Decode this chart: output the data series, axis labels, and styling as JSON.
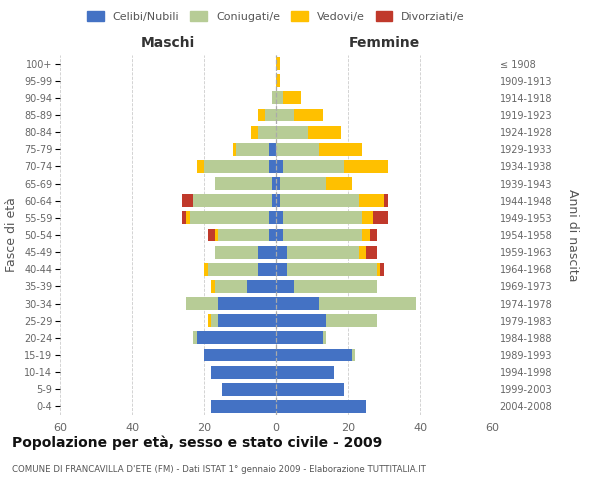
{
  "age_groups": [
    "0-4",
    "5-9",
    "10-14",
    "15-19",
    "20-24",
    "25-29",
    "30-34",
    "35-39",
    "40-44",
    "45-49",
    "50-54",
    "55-59",
    "60-64",
    "65-69",
    "70-74",
    "75-79",
    "80-84",
    "85-89",
    "90-94",
    "95-99",
    "100+"
  ],
  "birth_years": [
    "2004-2008",
    "1999-2003",
    "1994-1998",
    "1989-1993",
    "1984-1988",
    "1979-1983",
    "1974-1978",
    "1969-1973",
    "1964-1968",
    "1959-1963",
    "1954-1958",
    "1949-1953",
    "1944-1948",
    "1939-1943",
    "1934-1938",
    "1929-1933",
    "1924-1928",
    "1919-1923",
    "1914-1918",
    "1909-1913",
    "≤ 1908"
  ],
  "male": {
    "celibe": [
      18,
      15,
      18,
      20,
      22,
      16,
      16,
      8,
      5,
      5,
      2,
      2,
      1,
      1,
      2,
      2,
      0,
      0,
      0,
      0,
      0
    ],
    "coniugato": [
      0,
      0,
      0,
      0,
      1,
      2,
      9,
      9,
      14,
      12,
      14,
      22,
      22,
      16,
      18,
      9,
      5,
      3,
      1,
      0,
      0
    ],
    "vedovo": [
      0,
      0,
      0,
      0,
      0,
      1,
      0,
      1,
      1,
      0,
      1,
      1,
      0,
      0,
      2,
      1,
      2,
      2,
      0,
      0,
      0
    ],
    "divorziato": [
      0,
      0,
      0,
      0,
      0,
      0,
      0,
      0,
      0,
      0,
      2,
      1,
      3,
      0,
      0,
      0,
      0,
      0,
      0,
      0,
      0
    ]
  },
  "female": {
    "nubile": [
      25,
      19,
      16,
      21,
      13,
      14,
      12,
      5,
      3,
      3,
      2,
      2,
      1,
      1,
      2,
      0,
      0,
      0,
      0,
      0,
      0
    ],
    "coniugata": [
      0,
      0,
      0,
      1,
      1,
      14,
      27,
      23,
      25,
      20,
      22,
      22,
      22,
      13,
      17,
      12,
      9,
      5,
      2,
      0,
      0
    ],
    "vedova": [
      0,
      0,
      0,
      0,
      0,
      0,
      0,
      0,
      1,
      2,
      2,
      3,
      7,
      7,
      12,
      12,
      9,
      8,
      5,
      1,
      1
    ],
    "divorziata": [
      0,
      0,
      0,
      0,
      0,
      0,
      0,
      0,
      1,
      3,
      2,
      4,
      1,
      0,
      0,
      0,
      0,
      0,
      0,
      0,
      0
    ]
  },
  "colors": {
    "celibe_nubile": "#4472c4",
    "coniugato": "#b7cc96",
    "vedovo": "#ffc000",
    "divorziato": "#c0392b"
  },
  "xlim": 60,
  "title": "Popolazione per età, sesso e stato civile - 2009",
  "subtitle": "COMUNE DI FRANCAVILLA D'ETE (FM) - Dati ISTAT 1° gennaio 2009 - Elaborazione TUTTITALIA.IT",
  "ylabel_left": "Fasce di età",
  "ylabel_right": "Anni di nascita",
  "xlabel_maschi": "Maschi",
  "xlabel_femmine": "Femmine",
  "background_color": "#ffffff",
  "grid_color": "#cccccc"
}
